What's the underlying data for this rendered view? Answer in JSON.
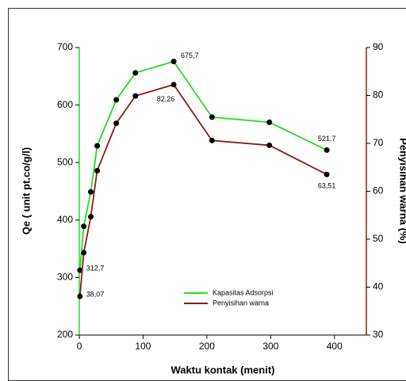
{
  "chart_data": {
    "type": "line",
    "xlabel": "Waktu kontak (menit)",
    "ylabel": "Qe ( unit pt.co/g/l)",
    "y2label": "Penyisihan warna (%)",
    "x": [
      1,
      7,
      18,
      28,
      58,
      88,
      148,
      208,
      298,
      388
    ],
    "xlim": [
      0,
      450
    ],
    "xticks": [
      0,
      100,
      200,
      300,
      400
    ],
    "ylim": [
      200,
      700
    ],
    "yticks": [
      200,
      300,
      400,
      500,
      600,
      700
    ],
    "y2lim": [
      30,
      90
    ],
    "y2ticks": [
      30,
      40,
      50,
      60,
      70,
      80,
      90
    ],
    "legend": "lower center",
    "series": [
      {
        "name": "Kapasitas Adsorpsi",
        "color": "#22dd22",
        "values": [
          312.7,
          389,
          449,
          529,
          609,
          656,
          675.7,
          579,
          570,
          521.7
        ],
        "value_labels": [
          "312,7",
          null,
          null,
          null,
          null,
          null,
          "675,7",
          null,
          null,
          "521,7"
        ]
      },
      {
        "name": "Penyisihan warna",
        "color": "#8b1a1a",
        "axis": "y2",
        "values": [
          38.07,
          47.2,
          54.7,
          64.3,
          74.2,
          79.9,
          82.26,
          70.6,
          69.6,
          63.51
        ],
        "value_labels": [
          "38,07",
          null,
          null,
          null,
          null,
          null,
          "82,26",
          null,
          null,
          "63,51"
        ]
      }
    ]
  }
}
